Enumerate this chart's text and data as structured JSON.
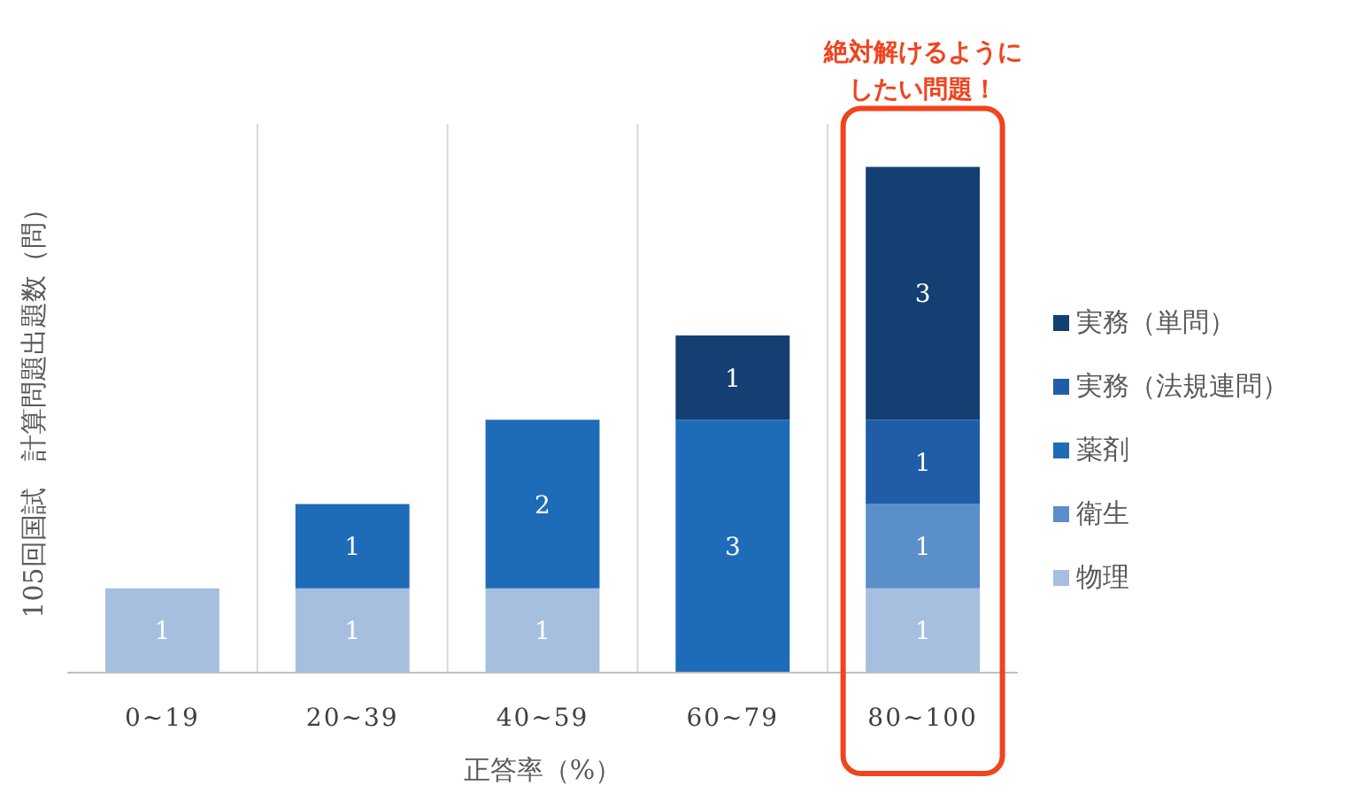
{
  "chart_data": {
    "type": "bar",
    "stacked": true,
    "xlabel": "正答率（%）",
    "ylabel": "105回国試　計算問題出題数（問）",
    "categories": [
      "0~19",
      "20~39",
      "40~59",
      "60~79",
      "80~100"
    ],
    "series": [
      {
        "name": "物理",
        "color": "#a6bfdf",
        "values": [
          1,
          1,
          1,
          null,
          1
        ]
      },
      {
        "name": "衛生",
        "color": "#5b8fc9",
        "values": [
          null,
          null,
          null,
          null,
          1
        ]
      },
      {
        "name": "薬剤",
        "color": "#1e6bb8",
        "values": [
          null,
          1,
          2,
          3,
          null
        ]
      },
      {
        "name": "実務（法規連問）",
        "color": "#1f5ea6",
        "values": [
          null,
          null,
          null,
          null,
          1
        ]
      },
      {
        "name": "実務（単問）",
        "color": "#133f73",
        "values": [
          null,
          null,
          null,
          1,
          3
        ]
      }
    ],
    "data_labels": true,
    "grid": "x",
    "legend": "right",
    "annotations": [
      {
        "text": "絶対解けるようにしたい問題！",
        "x": "80~100",
        "y": 6
      }
    ]
  }
}
